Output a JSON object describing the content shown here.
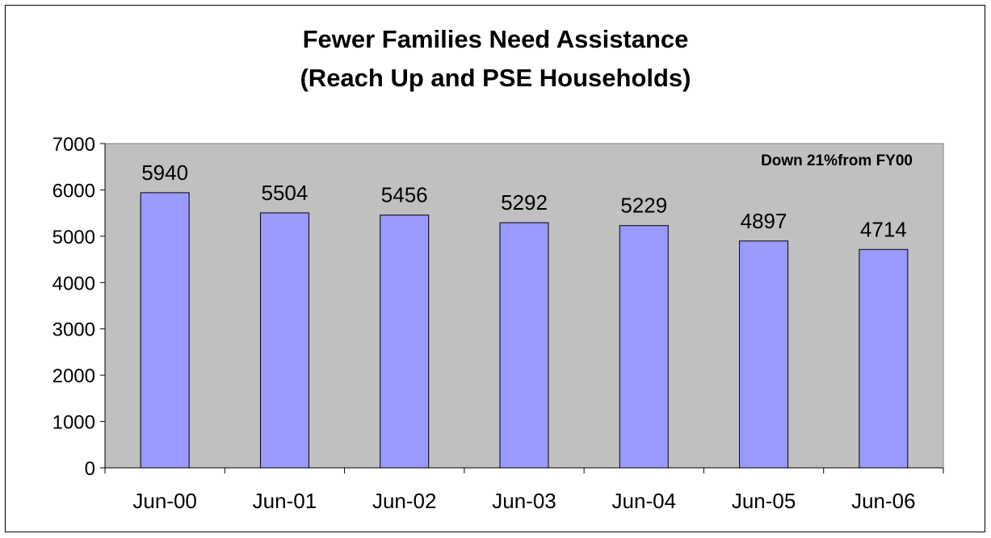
{
  "chart_data": {
    "type": "bar",
    "title_lines": [
      "Fewer Families Need Assistance",
      "(Reach Up and PSE Households)"
    ],
    "categories": [
      "Jun-00",
      "Jun-01",
      "Jun-02",
      "Jun-03",
      "Jun-04",
      "Jun-05",
      "Jun-06"
    ],
    "values": [
      5940,
      5504,
      5456,
      5292,
      5229,
      4897,
      4714
    ],
    "xlabel": "",
    "ylabel": "",
    "ylim": [
      0,
      7000
    ],
    "yticks": [
      "0",
      "1000",
      "2000",
      "3000",
      "4000",
      "5000",
      "6000",
      "7000"
    ],
    "annotation": "Down 21%from FY00",
    "grid": false,
    "legend": "none",
    "colors": {
      "bar_fill": "#9999ff",
      "bar_stroke": "#000000",
      "plot_background": "#c0c0c0"
    }
  }
}
